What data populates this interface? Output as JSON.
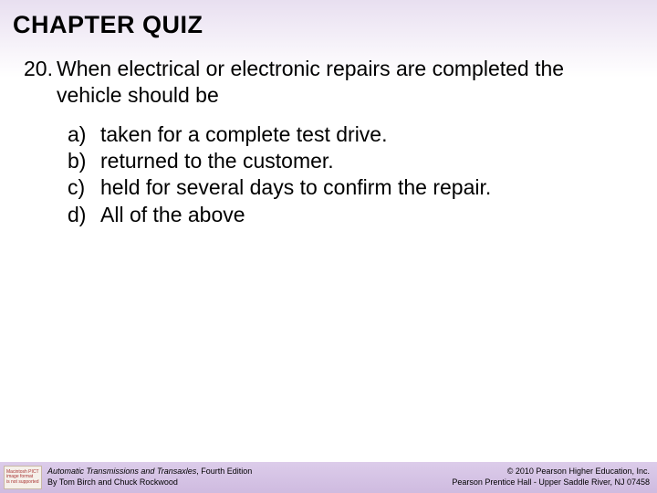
{
  "header": {
    "title": "CHAPTER QUIZ",
    "background_gradient_top": "#e8dff0",
    "background_gradient_bottom": "#ffffff"
  },
  "question": {
    "number": "20.",
    "text": "When electrical or electronic repairs are completed the vehicle should be",
    "options": [
      {
        "letter": "a)",
        "text": "taken for a complete test drive."
      },
      {
        "letter": "b)",
        "text": "returned to the customer."
      },
      {
        "letter": "c)",
        "text": "held for several days to confirm the repair."
      },
      {
        "letter": "d)",
        "text": "All of the above"
      }
    ]
  },
  "footer": {
    "badge_line1": "Macintosh PICT",
    "badge_line2": "image format",
    "badge_line3": "is not supported",
    "book_title": "Automatic Transmissions and Transaxles",
    "book_edition": ", Fourth Edition",
    "authors": "By Tom Birch and Chuck Rockwood",
    "copyright": "© 2010 Pearson Higher Education, Inc.",
    "publisher": "Pearson Prentice Hall - Upper Saddle River, NJ 07458",
    "background_color": "#d4c2e4"
  },
  "colors": {
    "text": "#000000",
    "page_bg": "#ffffff"
  },
  "typography": {
    "title_fontsize": 27,
    "body_fontsize": 23,
    "footer_fontsize": 9
  }
}
